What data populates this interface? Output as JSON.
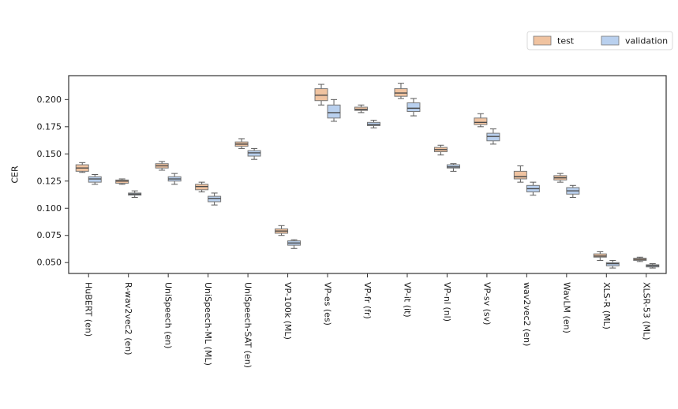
{
  "figure": {
    "background": "#ffffff",
    "spine_color": "#333333"
  },
  "chart_data": {
    "type": "boxplot",
    "title": "",
    "xlabel": "",
    "ylabel": "CER",
    "grid": false,
    "ylim": [
      0.04,
      0.222
    ],
    "yticks": [
      0.05,
      0.075,
      0.1,
      0.125,
      0.15,
      0.175,
      0.2
    ],
    "ytick_format_decimals": 3,
    "xtick_rotation_deg": 90,
    "legend": {
      "position": "upper-right-outside",
      "items": [
        {
          "label": "test",
          "color": "#F0C3A0"
        },
        {
          "label": "validation",
          "color": "#B9D0EE"
        }
      ]
    },
    "colors": {
      "test_fill": "#F0C3A0",
      "validation_fill": "#B9D0EE",
      "box_edge": "#777777",
      "whisker": "#5a5a5a",
      "median": "#4a4a4a",
      "legend_border": "#d9d9d9"
    },
    "categories": [
      "HuBERT (en)",
      "R-wav2vec2 (en)",
      "UniSpeech (en)",
      "UniSpeech-ML (ML)",
      "UniSpeech-SAT (en)",
      "VP-100k (ML)",
      "VP-es (es)",
      "VP-fr (fr)",
      "VP-it (it)",
      "VP-nl (nl)",
      "VP-sv (sv)",
      "wav2vec2 (en)",
      "WavLM (en)",
      "XLS-R (ML)",
      "XLSR-53 (ML)"
    ],
    "series": [
      {
        "name": "test",
        "color": "#F0C3A0",
        "boxes": [
          {
            "whislo": 0.133,
            "q1": 0.134,
            "med": 0.137,
            "q3": 0.14,
            "whishi": 0.142
          },
          {
            "whislo": 0.122,
            "q1": 0.123,
            "med": 0.125,
            "q3": 0.126,
            "whishi": 0.127
          },
          {
            "whislo": 0.135,
            "q1": 0.137,
            "med": 0.139,
            "q3": 0.141,
            "whishi": 0.143
          },
          {
            "whislo": 0.115,
            "q1": 0.117,
            "med": 0.12,
            "q3": 0.122,
            "whishi": 0.124
          },
          {
            "whislo": 0.155,
            "q1": 0.157,
            "med": 0.159,
            "q3": 0.161,
            "whishi": 0.164
          },
          {
            "whislo": 0.075,
            "q1": 0.077,
            "med": 0.079,
            "q3": 0.081,
            "whishi": 0.084
          },
          {
            "whislo": 0.195,
            "q1": 0.199,
            "med": 0.204,
            "q3": 0.21,
            "whishi": 0.214
          },
          {
            "whislo": 0.188,
            "q1": 0.19,
            "med": 0.191,
            "q3": 0.193,
            "whishi": 0.195
          },
          {
            "whislo": 0.201,
            "q1": 0.203,
            "med": 0.206,
            "q3": 0.21,
            "whishi": 0.215
          },
          {
            "whislo": 0.149,
            "q1": 0.152,
            "med": 0.154,
            "q3": 0.156,
            "whishi": 0.158
          },
          {
            "whislo": 0.175,
            "q1": 0.177,
            "med": 0.179,
            "q3": 0.183,
            "whishi": 0.187
          },
          {
            "whislo": 0.124,
            "q1": 0.127,
            "med": 0.129,
            "q3": 0.134,
            "whishi": 0.139
          },
          {
            "whislo": 0.124,
            "q1": 0.126,
            "med": 0.128,
            "q3": 0.13,
            "whishi": 0.132
          },
          {
            "whislo": 0.052,
            "q1": 0.055,
            "med": 0.056,
            "q3": 0.058,
            "whishi": 0.06
          },
          {
            "whislo": 0.051,
            "q1": 0.052,
            "med": 0.053,
            "q3": 0.054,
            "whishi": 0.055
          }
        ]
      },
      {
        "name": "validation",
        "color": "#B9D0EE",
        "boxes": [
          {
            "whislo": 0.122,
            "q1": 0.124,
            "med": 0.127,
            "q3": 0.129,
            "whishi": 0.131
          },
          {
            "whislo": 0.11,
            "q1": 0.112,
            "med": 0.113,
            "q3": 0.114,
            "whishi": 0.116
          },
          {
            "whislo": 0.122,
            "q1": 0.125,
            "med": 0.127,
            "q3": 0.129,
            "whishi": 0.132
          },
          {
            "whislo": 0.103,
            "q1": 0.106,
            "med": 0.109,
            "q3": 0.111,
            "whishi": 0.114
          },
          {
            "whislo": 0.145,
            "q1": 0.148,
            "med": 0.151,
            "q3": 0.153,
            "whishi": 0.155
          },
          {
            "whislo": 0.063,
            "q1": 0.066,
            "med": 0.068,
            "q3": 0.07,
            "whishi": 0.071
          },
          {
            "whislo": 0.18,
            "q1": 0.183,
            "med": 0.188,
            "q3": 0.195,
            "whishi": 0.2
          },
          {
            "whislo": 0.174,
            "q1": 0.176,
            "med": 0.177,
            "q3": 0.179,
            "whishi": 0.181
          },
          {
            "whislo": 0.185,
            "q1": 0.189,
            "med": 0.192,
            "q3": 0.197,
            "whishi": 0.201
          },
          {
            "whislo": 0.134,
            "q1": 0.137,
            "med": 0.138,
            "q3": 0.14,
            "whishi": 0.141
          },
          {
            "whislo": 0.159,
            "q1": 0.162,
            "med": 0.166,
            "q3": 0.169,
            "whishi": 0.173
          },
          {
            "whislo": 0.112,
            "q1": 0.115,
            "med": 0.118,
            "q3": 0.121,
            "whishi": 0.124
          },
          {
            "whislo": 0.11,
            "q1": 0.113,
            "med": 0.116,
            "q3": 0.119,
            "whishi": 0.121
          },
          {
            "whislo": 0.045,
            "q1": 0.047,
            "med": 0.049,
            "q3": 0.05,
            "whishi": 0.052
          },
          {
            "whislo": 0.045,
            "q1": 0.046,
            "med": 0.047,
            "q3": 0.048,
            "whishi": 0.049
          }
        ]
      }
    ]
  }
}
